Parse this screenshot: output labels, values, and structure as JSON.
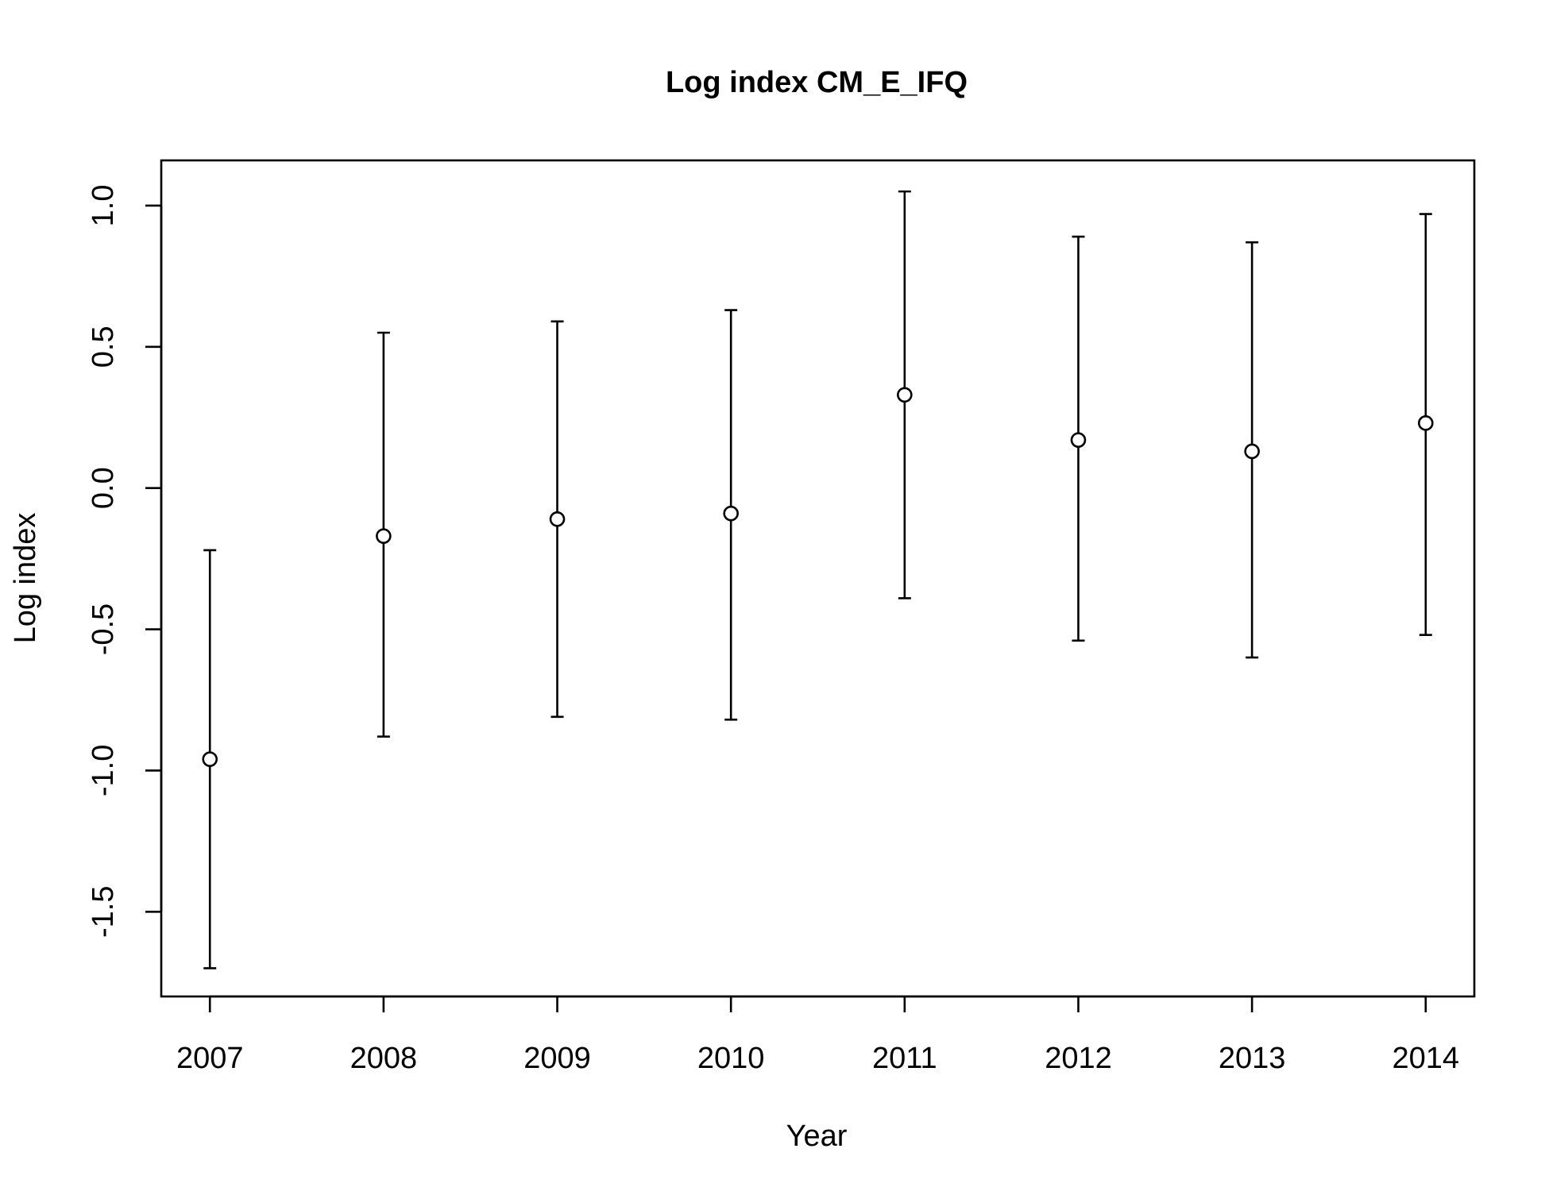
{
  "chart_data": {
    "type": "scatter",
    "title": "Log index CM_E_IFQ",
    "xlabel": "Year",
    "ylabel": "Log index",
    "x": [
      2007,
      2008,
      2009,
      2010,
      2011,
      2012,
      2013,
      2014
    ],
    "x_tick_labels": [
      "2007",
      "2008",
      "2009",
      "2010",
      "2011",
      "2012",
      "2013",
      "2014"
    ],
    "y": [
      -0.96,
      -0.17,
      -0.11,
      -0.09,
      0.33,
      0.17,
      0.13,
      0.23
    ],
    "lower": [
      -1.7,
      -0.88,
      -0.81,
      -0.82,
      -0.39,
      -0.54,
      -0.6,
      -0.52
    ],
    "upper": [
      -0.22,
      0.55,
      0.59,
      0.63,
      1.05,
      0.89,
      0.87,
      0.97
    ],
    "y_ticks": [
      -1.5,
      -1.0,
      -0.5,
      0.0,
      0.5,
      1.0
    ],
    "y_tick_labels": [
      "-1.5",
      "-1.0",
      "-0.5",
      "0.0",
      "0.5",
      "1.0"
    ],
    "xlim": [
      2006.72,
      2014.28
    ],
    "ylim": [
      -1.8,
      1.16
    ],
    "grid": false,
    "marker": "open-circle",
    "error_bars": true
  }
}
